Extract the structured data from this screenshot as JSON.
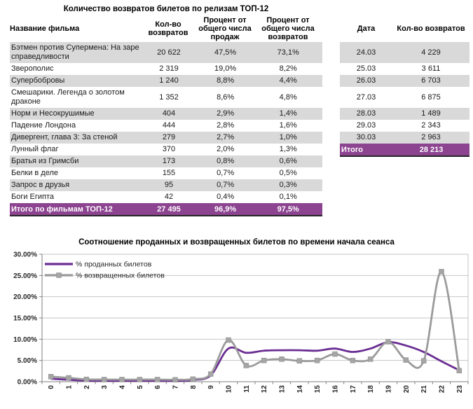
{
  "top_table": {
    "title": "Количество возвратов билетов по релизам ТОП-12",
    "columns": [
      "Название фильма",
      "Кол-во возвратов",
      "Процент от общего числа продаж",
      "Процент от общего числа возвратов"
    ],
    "rows": [
      [
        "Бэтмен против Супермена: На заре справедливости",
        "20 622",
        "47,5%",
        "73,1%"
      ],
      [
        "Зверополис",
        "2 319",
        "19,0%",
        "8,2%"
      ],
      [
        "Супербобровы",
        "1 240",
        "8,8%",
        "4,4%"
      ],
      [
        "Смешарики. Легенда о золотом драконе",
        "1 352",
        "8,6%",
        "4,8%"
      ],
      [
        "Норм и Несокрушимые",
        "404",
        "2,9%",
        "1,4%"
      ],
      [
        "Падение Лондона",
        "444",
        "2,8%",
        "1,6%"
      ],
      [
        "Дивергент, глава 3: За стеной",
        "279",
        "2,7%",
        "1,0%"
      ],
      [
        "Лунный флаг",
        "370",
        "2,0%",
        "1,3%"
      ],
      [
        "Братья из Гримсби",
        "173",
        "0,8%",
        "0,6%"
      ],
      [
        "Белки в деле",
        "155",
        "0,7%",
        "0,5%"
      ],
      [
        "Запрос в друзья",
        "95",
        "0,7%",
        "0,3%"
      ],
      [
        "Боги Египта",
        "42",
        "0,4%",
        "0,1%"
      ]
    ],
    "total": [
      "Итого по фильмам ТОП-12",
      "27 495",
      "96,9%",
      "97,5%"
    ]
  },
  "date_table": {
    "columns": [
      "Дата",
      "Кол-во возвратов"
    ],
    "rows": [
      [
        "24.03",
        "4 229"
      ],
      [
        "25.03",
        "3 611"
      ],
      [
        "26.03",
        "6 703"
      ],
      [
        "27.03",
        "6 875"
      ],
      [
        "28.03",
        "1 489"
      ],
      [
        "29.03",
        "2 343"
      ],
      [
        "30.03",
        "2 963"
      ]
    ],
    "total": [
      "Итого",
      "28 213"
    ]
  },
  "chart_data": {
    "type": "line",
    "title": "Соотношение проданных и возвращенных билетов по времени начала сеанса",
    "x": [
      0,
      1,
      2,
      3,
      4,
      5,
      6,
      7,
      8,
      9,
      10,
      11,
      12,
      13,
      14,
      15,
      16,
      17,
      18,
      19,
      20,
      21,
      22,
      23
    ],
    "series": [
      {
        "name": "% проданных билетов",
        "color": "#6B2E93",
        "marker": "none",
        "values": [
          0.7,
          0.45,
          0.25,
          0.2,
          0.2,
          0.2,
          0.2,
          0.2,
          0.4,
          1.5,
          7.8,
          6.8,
          7.3,
          7.4,
          7.4,
          7.3,
          7.8,
          7.0,
          7.8,
          9.3,
          8.5,
          7.0,
          4.8,
          2.7
        ]
      },
      {
        "name": "% возвращенных билетов",
        "color": "#9B9B9B",
        "marker": "square",
        "values": [
          1.2,
          0.9,
          0.55,
          0.5,
          0.5,
          0.5,
          0.5,
          0.45,
          0.6,
          1.8,
          9.8,
          3.8,
          5.0,
          5.3,
          4.9,
          5.0,
          6.5,
          5.0,
          5.3,
          9.4,
          5.1,
          4.9,
          25.9,
          2.6
        ]
      }
    ],
    "ylim": [
      0,
      30
    ],
    "yticks": [
      "0.00%",
      "5.00%",
      "10.00%",
      "15.00%",
      "20.00%",
      "25.00%",
      "30.00%"
    ],
    "grid": true,
    "legend_position": "top-left-inside",
    "xlabel": "",
    "ylabel": ""
  },
  "colors": {
    "stripe": "#D9D9D9",
    "total_row_bg": "#8C4390",
    "grid_line": "#C6C6C6",
    "axis_line": "#7F7F7F",
    "tick_text": "#262626"
  }
}
